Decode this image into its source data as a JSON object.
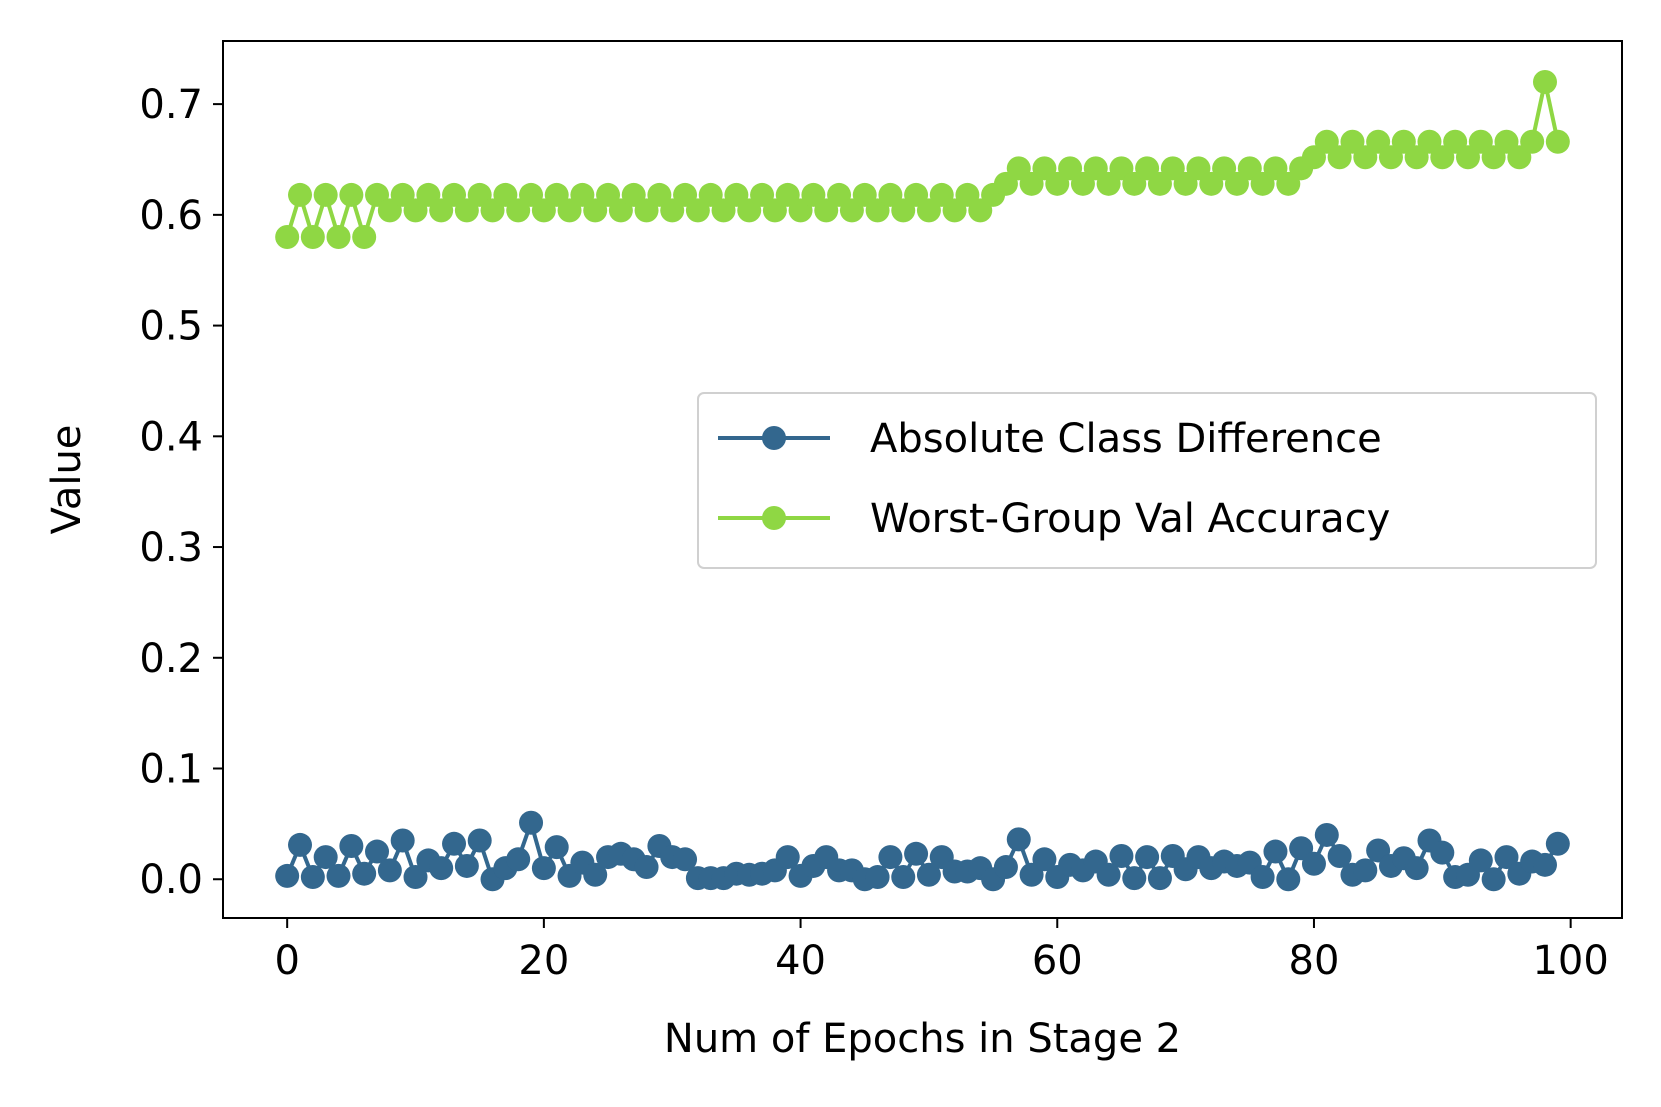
{
  "chart_data": {
    "type": "line",
    "xlabel": "Num of Epochs in Stage 2",
    "ylabel": "Value",
    "xlim": [
      -5,
      104
    ],
    "ylim": [
      -0.035,
      0.757
    ],
    "xticks": [
      0,
      20,
      40,
      60,
      80,
      100
    ],
    "xtick_labels": [
      "0",
      "20",
      "40",
      "60",
      "80",
      "100"
    ],
    "yticks": [
      0.0,
      0.1,
      0.2,
      0.3,
      0.4,
      0.5,
      0.6,
      0.7
    ],
    "ytick_labels": [
      "0.0",
      "0.1",
      "0.2",
      "0.3",
      "0.4",
      "0.5",
      "0.6",
      "0.7"
    ],
    "grid": false,
    "legend_position": "center-right",
    "x": [
      0,
      1,
      2,
      3,
      4,
      5,
      6,
      7,
      8,
      9,
      10,
      11,
      12,
      13,
      14,
      15,
      16,
      17,
      18,
      19,
      20,
      21,
      22,
      23,
      24,
      25,
      26,
      27,
      28,
      29,
      30,
      31,
      32,
      33,
      34,
      35,
      36,
      37,
      38,
      39,
      40,
      41,
      42,
      43,
      44,
      45,
      46,
      47,
      48,
      49,
      50,
      51,
      52,
      53,
      54,
      55,
      56,
      57,
      58,
      59,
      60,
      61,
      62,
      63,
      64,
      65,
      66,
      67,
      68,
      69,
      70,
      71,
      72,
      73,
      74,
      75,
      76,
      77,
      78,
      79,
      80,
      81,
      82,
      83,
      84,
      85,
      86,
      87,
      88,
      89,
      90,
      91,
      92,
      93,
      94,
      95,
      96,
      97,
      98,
      99
    ],
    "series": [
      {
        "name": "Absolute Class Difference",
        "color": "#33678e",
        "values": [
          0.003,
          0.031,
          0.002,
          0.02,
          0.003,
          0.03,
          0.005,
          0.025,
          0.008,
          0.035,
          0.002,
          0.017,
          0.01,
          0.032,
          0.012,
          0.035,
          0.0,
          0.01,
          0.018,
          0.051,
          0.01,
          0.029,
          0.003,
          0.015,
          0.004,
          0.02,
          0.023,
          0.018,
          0.011,
          0.03,
          0.02,
          0.018,
          0.001,
          0.001,
          0.001,
          0.005,
          0.004,
          0.005,
          0.008,
          0.02,
          0.003,
          0.012,
          0.02,
          0.008,
          0.008,
          0.0,
          0.002,
          0.02,
          0.002,
          0.023,
          0.004,
          0.02,
          0.007,
          0.007,
          0.01,
          0.0,
          0.011,
          0.036,
          0.004,
          0.018,
          0.002,
          0.013,
          0.008,
          0.016,
          0.004,
          0.021,
          0.001,
          0.02,
          0.001,
          0.021,
          0.009,
          0.02,
          0.01,
          0.016,
          0.012,
          0.015,
          0.002,
          0.025,
          0.0,
          0.028,
          0.014,
          0.04,
          0.021,
          0.004,
          0.008,
          0.026,
          0.012,
          0.019,
          0.01,
          0.035,
          0.024,
          0.002,
          0.004,
          0.017,
          0.0,
          0.02,
          0.005,
          0.016,
          0.013,
          0.032
        ]
      },
      {
        "name": "Worst-Group Val Accuracy",
        "color": "#8fd744",
        "values": [
          0.58,
          0.618,
          0.58,
          0.618,
          0.58,
          0.618,
          0.58,
          0.618,
          0.604,
          0.618,
          0.604,
          0.618,
          0.604,
          0.618,
          0.604,
          0.618,
          0.604,
          0.618,
          0.604,
          0.618,
          0.604,
          0.618,
          0.604,
          0.618,
          0.604,
          0.618,
          0.604,
          0.618,
          0.604,
          0.618,
          0.604,
          0.618,
          0.604,
          0.618,
          0.604,
          0.618,
          0.604,
          0.618,
          0.604,
          0.618,
          0.604,
          0.618,
          0.604,
          0.618,
          0.604,
          0.618,
          0.604,
          0.618,
          0.604,
          0.618,
          0.604,
          0.618,
          0.604,
          0.618,
          0.604,
          0.618,
          0.628,
          0.642,
          0.628,
          0.642,
          0.628,
          0.642,
          0.628,
          0.642,
          0.628,
          0.642,
          0.628,
          0.642,
          0.628,
          0.642,
          0.628,
          0.642,
          0.628,
          0.642,
          0.628,
          0.642,
          0.628,
          0.642,
          0.628,
          0.642,
          0.652,
          0.666,
          0.652,
          0.666,
          0.652,
          0.666,
          0.652,
          0.666,
          0.652,
          0.666,
          0.652,
          0.666,
          0.652,
          0.666,
          0.652,
          0.666,
          0.652,
          0.666,
          0.72,
          0.666
        ]
      }
    ]
  }
}
